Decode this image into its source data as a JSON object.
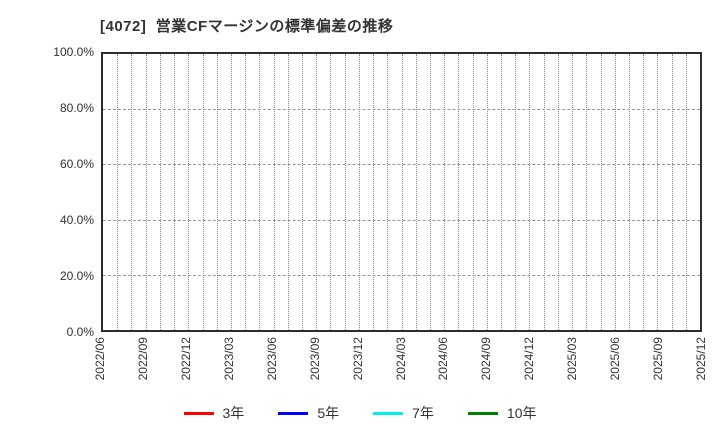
{
  "header": {
    "title": "[4072]  営業CFマージンの標準偏差の推移"
  },
  "chart_data": {
    "type": "line",
    "title": "[4072]  営業CFマージンの標準偏差の推移",
    "xlabel": "",
    "ylabel": "",
    "y_unit": "%",
    "ylim": [
      0,
      100
    ],
    "y_tick_values": [
      0,
      20,
      40,
      60,
      80,
      100
    ],
    "y_tick_labels": [
      "0.0%",
      "20.0%",
      "40.0%",
      "60.0%",
      "80.0%",
      "100.0%"
    ],
    "x_tick_labels": [
      "2022/06",
      "2022/09",
      "2022/12",
      "2023/03",
      "2023/06",
      "2023/09",
      "2023/12",
      "2024/03",
      "2024/06",
      "2024/09",
      "2024/12",
      "2025/03",
      "2025/06",
      "2025/09",
      "2025/12"
    ],
    "minor_gridlines_per_interval": 3,
    "grid": "on",
    "legend_position": "bottom",
    "plot_is_empty": true,
    "series": [
      {
        "name": "3年",
        "color": "#ff0000",
        "values": []
      },
      {
        "name": "5年",
        "color": "#0000ff",
        "values": []
      },
      {
        "name": "7年",
        "color": "#00eeee",
        "values": []
      },
      {
        "name": "10年",
        "color": "#008000",
        "values": []
      }
    ]
  }
}
